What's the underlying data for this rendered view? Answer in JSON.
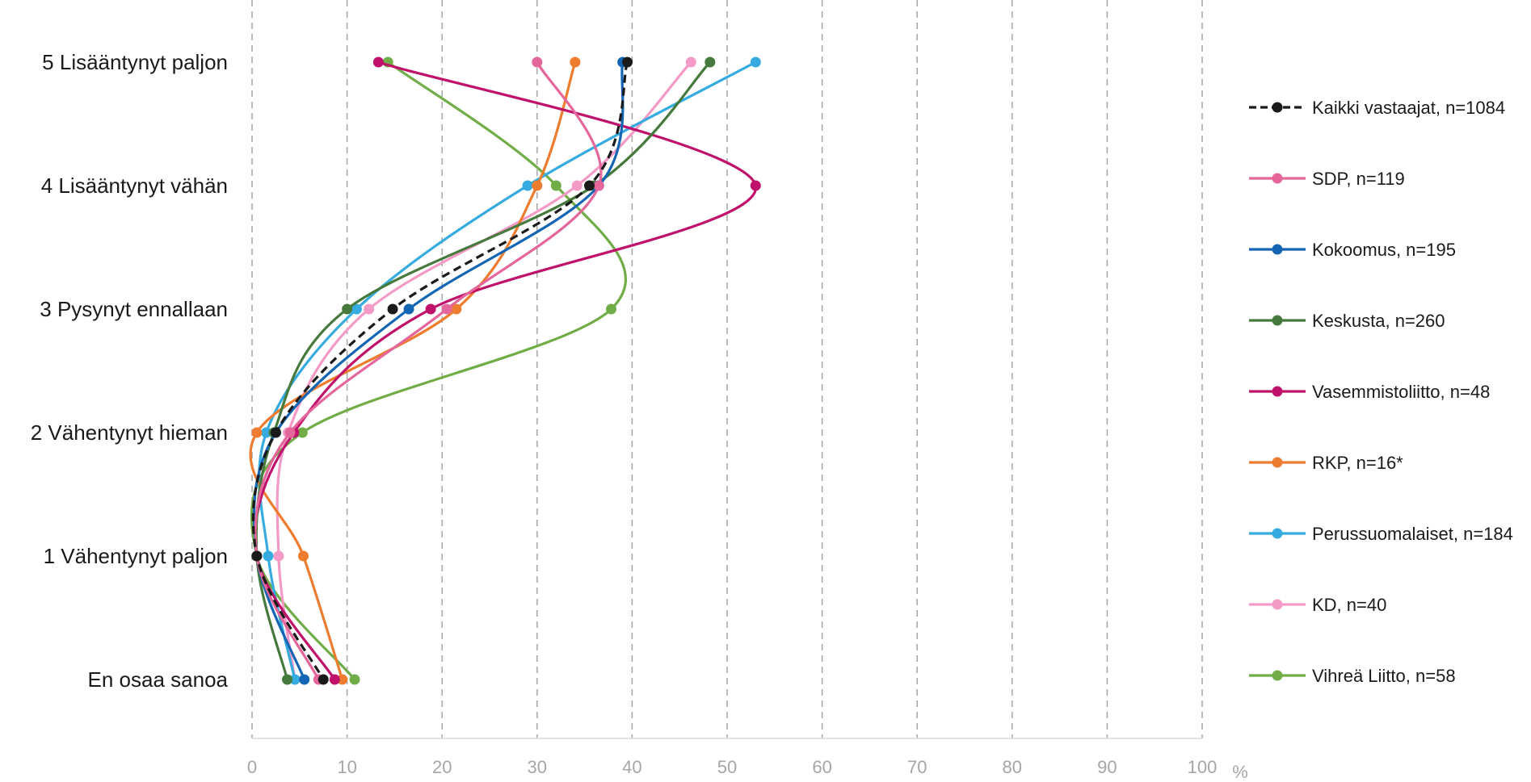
{
  "chart_data": {
    "type": "line",
    "orientation": "horizontal-values",
    "title": "",
    "xlabel": "",
    "x_unit": "%",
    "xlim": [
      0,
      100
    ],
    "x_ticks": [
      "0",
      "10",
      "20",
      "30",
      "40",
      "50",
      "60",
      "70",
      "80",
      "90",
      "100"
    ],
    "grid": "vertical dashed",
    "legend_position": "right",
    "categories": [
      "5 Lisääntynyt paljon",
      "4 Lisääntynyt vähän",
      "3 Pysynyt ennallaan",
      "2 Vähentynyt hieman",
      "1 Vähentynyt paljon",
      "En osaa sanoa"
    ],
    "series": [
      {
        "name": "Kaikki vastaajat, n=1084",
        "color": "#1a1a1a",
        "dashed": true,
        "values": [
          39.5,
          35.5,
          14.8,
          2.5,
          0.5,
          7.5
        ]
      },
      {
        "name": "SDP, n=119",
        "color": "#e5669b",
        "dashed": false,
        "values": [
          30.0,
          36.5,
          20.5,
          4.0,
          0.5,
          7.0
        ]
      },
      {
        "name": "Kokoomus, n=195",
        "color": "#1466b4",
        "dashed": false,
        "values": [
          39.0,
          36.5,
          16.5,
          2.5,
          0.5,
          5.5
        ]
      },
      {
        "name": "Keskusta, n=260",
        "color": "#467a3c",
        "dashed": false,
        "values": [
          48.2,
          36.0,
          10.0,
          2.3,
          0.5,
          3.7
        ]
      },
      {
        "name": "Vasemmistoliitto, n=48",
        "color": "#c0116b",
        "dashed": false,
        "values": [
          13.3,
          53.0,
          18.8,
          4.4,
          0.5,
          8.7
        ]
      },
      {
        "name": "RKP, n=16*",
        "color": "#ee7c2e",
        "dashed": false,
        "values": [
          34.0,
          30.0,
          21.5,
          0.5,
          5.4,
          9.5
        ]
      },
      {
        "name": "Perussuomalaiset, n=184",
        "color": "#35abdf",
        "dashed": false,
        "values": [
          53.0,
          29.0,
          11.0,
          1.5,
          1.7,
          4.5
        ]
      },
      {
        "name": "KD, n=40",
        "color": "#f49ac6",
        "dashed": false,
        "values": [
          46.2,
          34.2,
          12.3,
          3.8,
          2.8,
          4.5
        ]
      },
      {
        "name": "Vihreä Liitto, n=58",
        "color": "#70ad47",
        "dashed": false,
        "values": [
          14.3,
          32.0,
          37.8,
          5.3,
          0.5,
          10.8
        ]
      }
    ]
  }
}
